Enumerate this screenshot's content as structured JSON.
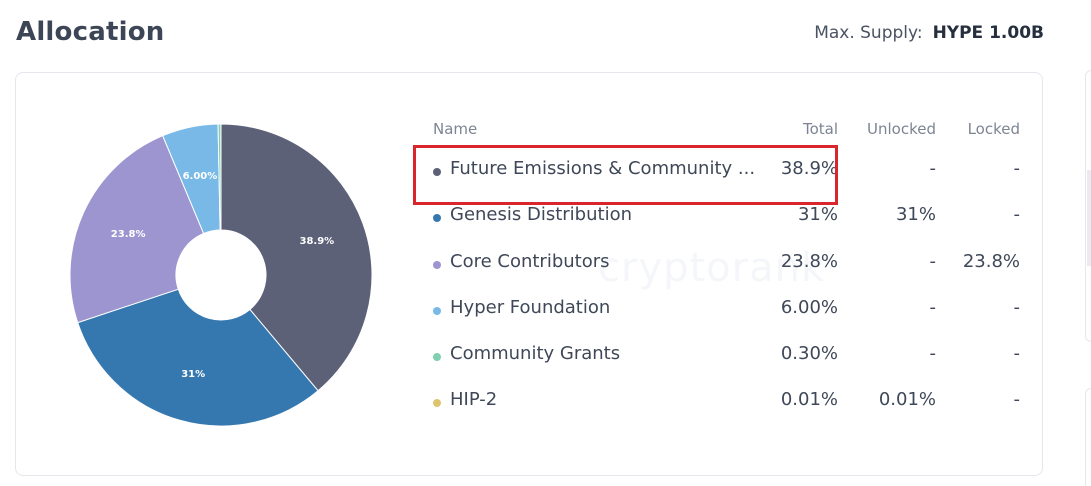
{
  "header": {
    "title": "Allocation",
    "supply_label": "Max. Supply:",
    "supply_value": "HYPE 1.00B"
  },
  "watermark": "cryptorank",
  "table": {
    "columns": [
      "Name",
      "Total",
      "Unlocked",
      "Locked"
    ],
    "rows": [
      {
        "name": "Future Emissions & Community ...",
        "total": "38.9%",
        "unlocked": "-",
        "locked": "-",
        "color": "#5c6178"
      },
      {
        "name": "Genesis Distribution",
        "total": "31%",
        "unlocked": "31%",
        "locked": "-",
        "color": "#3578b0"
      },
      {
        "name": "Core Contributors",
        "total": "23.8%",
        "unlocked": "-",
        "locked": "23.8%",
        "color": "#9d95cf"
      },
      {
        "name": "Hyper Foundation",
        "total": "6.00%",
        "unlocked": "-",
        "locked": "-",
        "color": "#78b9e7"
      },
      {
        "name": "Community Grants",
        "total": "0.30%",
        "unlocked": "-",
        "locked": "-",
        "color": "#7fcfb0"
      },
      {
        "name": "HIP-2",
        "total": "0.01%",
        "unlocked": "0.01%",
        "locked": "-",
        "color": "#ddc46e"
      }
    ]
  },
  "chart_data": {
    "type": "pie",
    "donut": true,
    "categories": [
      "Future Emissions & Community ...",
      "Genesis Distribution",
      "Core Contributors",
      "Hyper Foundation",
      "Community Grants",
      "HIP-2"
    ],
    "values": [
      38.9,
      31,
      23.8,
      6.0,
      0.3,
      0.01
    ],
    "slice_labels": [
      "38.9%",
      "31%",
      "23.8%",
      "6.00%",
      "",
      ""
    ],
    "colors": [
      "#5c6178",
      "#3578b0",
      "#9d95cf",
      "#78b9e7",
      "#7fcfb0",
      "#ddc46e"
    ],
    "start_angle": "12 o'clock",
    "direction": "clockwise"
  }
}
